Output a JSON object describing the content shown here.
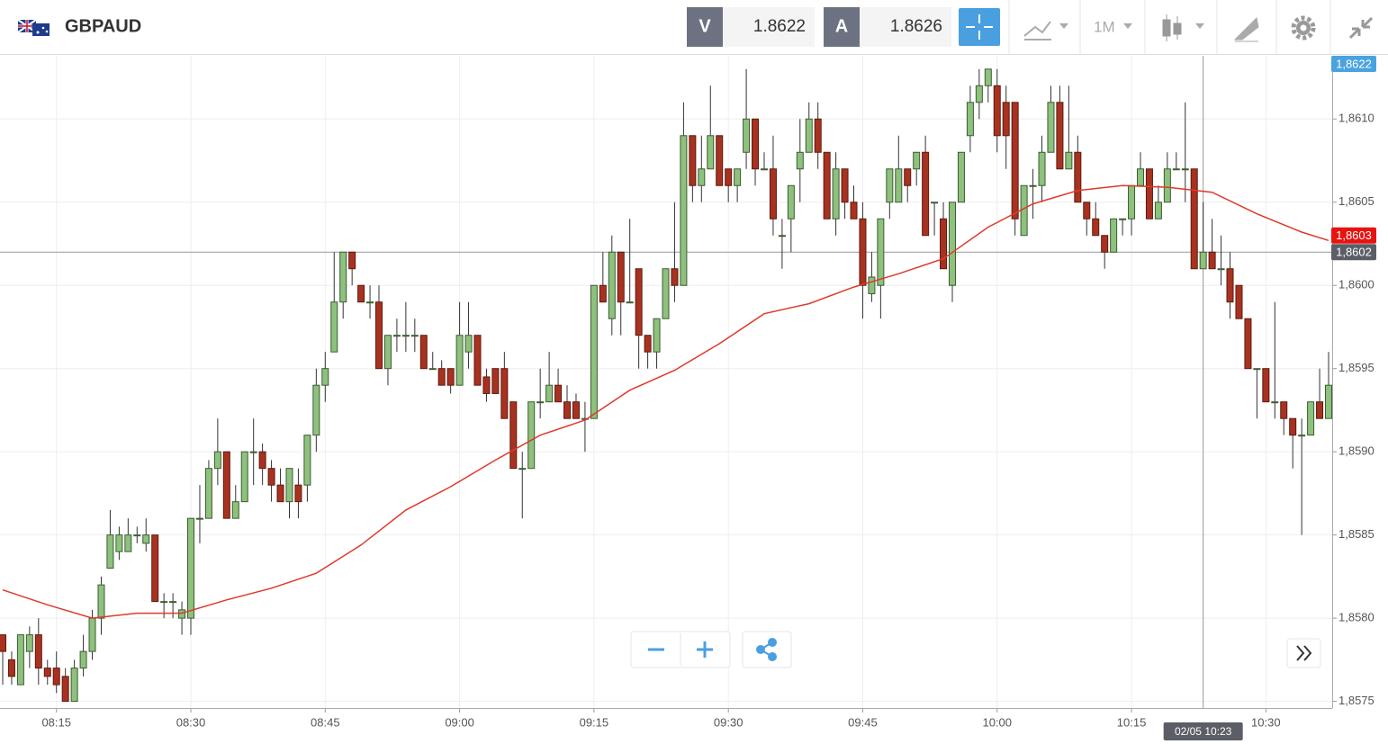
{
  "header": {
    "symbol": "GBPAUD",
    "bid_label": "V",
    "bid": "1.8622",
    "ask_label": "A",
    "ask": "1.8626",
    "timeframe": "1M"
  },
  "chart_data": {
    "type": "candlestick",
    "up_color": "#8dc17d",
    "down_color": "#a83220",
    "x": [
      "08:09",
      "08:10",
      "08:11",
      "08:12",
      "08:13",
      "08:14",
      "08:15",
      "08:16",
      "08:17",
      "08:18",
      "08:19",
      "08:20",
      "08:21",
      "08:22",
      "08:23",
      "08:24",
      "08:25",
      "08:26",
      "08:27",
      "08:28",
      "08:29",
      "08:30",
      "08:31",
      "08:32",
      "08:33",
      "08:34",
      "08:35",
      "08:36",
      "08:37",
      "08:38",
      "08:39",
      "08:40",
      "08:41",
      "08:42",
      "08:43",
      "08:44",
      "08:45",
      "08:46",
      "08:47",
      "08:48",
      "08:49",
      "08:50",
      "08:51",
      "08:52",
      "08:53",
      "08:54",
      "08:55",
      "08:56",
      "08:57",
      "08:58",
      "08:59",
      "09:00",
      "09:01",
      "09:02",
      "09:03",
      "09:04",
      "09:05",
      "09:06",
      "09:07",
      "09:08",
      "09:09",
      "09:10",
      "09:11",
      "09:12",
      "09:13",
      "09:14",
      "09:15",
      "09:16",
      "09:17",
      "09:18",
      "09:19",
      "09:20",
      "09:21",
      "09:22",
      "09:23",
      "09:24",
      "09:25",
      "09:26",
      "09:27",
      "09:28",
      "09:29",
      "09:30",
      "09:31",
      "09:32",
      "09:33",
      "09:34",
      "09:35",
      "09:36",
      "09:37",
      "09:38",
      "09:39",
      "09:40",
      "09:41",
      "09:42",
      "09:43",
      "09:44",
      "09:45",
      "09:46",
      "09:47",
      "09:48",
      "09:49",
      "09:50",
      "09:51",
      "09:52",
      "09:53",
      "09:54",
      "09:55",
      "09:56",
      "09:57",
      "09:58",
      "09:59",
      "10:00",
      "10:01",
      "10:02",
      "10:03",
      "10:04",
      "10:05",
      "10:06",
      "10:07",
      "10:08",
      "10:09",
      "10:10",
      "10:11",
      "10:12",
      "10:13",
      "10:14",
      "10:15",
      "10:16",
      "10:17",
      "10:18",
      "10:19",
      "10:20",
      "10:21",
      "10:22",
      "10:23",
      "10:24",
      "10:25",
      "10:26",
      "10:27",
      "10:28",
      "10:29",
      "10:30",
      "10:31",
      "10:32",
      "10:33",
      "10:34",
      "10:35",
      "10:36",
      "10:37"
    ],
    "ohlc": [
      [
        1.8579,
        1.8579,
        1.8576,
        1.8578
      ],
      [
        1.85775,
        1.8578,
        1.8576,
        1.85765
      ],
      [
        1.8576,
        1.8579,
        1.8576,
        1.8579
      ],
      [
        1.8578,
        1.85795,
        1.8577,
        1.8579
      ],
      [
        1.8579,
        1.858,
        1.8576,
        1.8577
      ],
      [
        1.8577,
        1.85775,
        1.8576,
        1.85765
      ],
      [
        1.8577,
        1.8578,
        1.85755,
        1.8576
      ],
      [
        1.85765,
        1.8577,
        1.8575,
        1.8575
      ],
      [
        1.8575,
        1.85775,
        1.8575,
        1.8577
      ],
      [
        1.8577,
        1.8579,
        1.85765,
        1.8578
      ],
      [
        1.8578,
        1.85805,
        1.85775,
        1.858
      ],
      [
        1.858,
        1.85825,
        1.8579,
        1.8582
      ],
      [
        1.8583,
        1.85865,
        1.8583,
        1.8585
      ],
      [
        1.8584,
        1.85855,
        1.85835,
        1.8585
      ],
      [
        1.8584,
        1.8586,
        1.8584,
        1.8585
      ],
      [
        1.8585,
        1.85855,
        1.85845,
        1.8585
      ],
      [
        1.85845,
        1.8586,
        1.8584,
        1.8585
      ],
      [
        1.8585,
        1.8585,
        1.8581,
        1.8581
      ],
      [
        1.8581,
        1.85815,
        1.858,
        1.8581
      ],
      [
        1.8581,
        1.85815,
        1.858,
        1.8581
      ],
      [
        1.858,
        1.8581,
        1.8579,
        1.85805
      ],
      [
        1.858,
        1.8586,
        1.8579,
        1.8586
      ],
      [
        1.8586,
        1.8588,
        1.85845,
        1.8586
      ],
      [
        1.8586,
        1.85895,
        1.8586,
        1.8589
      ],
      [
        1.8589,
        1.8592,
        1.8588,
        1.859
      ],
      [
        1.859,
        1.859,
        1.8586,
        1.8586
      ],
      [
        1.8586,
        1.8588,
        1.8586,
        1.8587
      ],
      [
        1.8587,
        1.859,
        1.8587,
        1.859
      ],
      [
        1.859,
        1.8592,
        1.8588,
        1.859
      ],
      [
        1.859,
        1.85905,
        1.8588,
        1.8589
      ],
      [
        1.8589,
        1.85895,
        1.8587,
        1.8588
      ],
      [
        1.8588,
        1.8589,
        1.8587,
        1.8587
      ],
      [
        1.8587,
        1.8589,
        1.8586,
        1.8589
      ],
      [
        1.8588,
        1.8589,
        1.8586,
        1.8587
      ],
      [
        1.8588,
        1.8591,
        1.8587,
        1.8591
      ],
      [
        1.8591,
        1.8595,
        1.859,
        1.8594
      ],
      [
        1.8594,
        1.8596,
        1.8593,
        1.8595
      ],
      [
        1.8596,
        1.8602,
        1.8596,
        1.8599
      ],
      [
        1.8599,
        1.8602,
        1.8598,
        1.8602
      ],
      [
        1.8602,
        1.8602,
        1.86,
        1.8601
      ],
      [
        1.86,
        1.86,
        1.8599,
        1.8599
      ],
      [
        1.8599,
        1.86,
        1.8598,
        1.8599
      ],
      [
        1.8599,
        1.86,
        1.8595,
        1.8595
      ],
      [
        1.8595,
        1.8597,
        1.8594,
        1.8597
      ],
      [
        1.8597,
        1.8598,
        1.8596,
        1.8597
      ],
      [
        1.8597,
        1.8599,
        1.8596,
        1.8597
      ],
      [
        1.8597,
        1.8598,
        1.8596,
        1.8597
      ],
      [
        1.8597,
        1.8597,
        1.8595,
        1.8595
      ],
      [
        1.8595,
        1.8596,
        1.8595,
        1.8595
      ],
      [
        1.8595,
        1.85955,
        1.8594,
        1.8594
      ],
      [
        1.8595,
        1.8595,
        1.85935,
        1.8594
      ],
      [
        1.8594,
        1.8599,
        1.8594,
        1.8597
      ],
      [
        1.8596,
        1.8599,
        1.8595,
        1.8597
      ],
      [
        1.8597,
        1.8597,
        1.8594,
        1.8594
      ],
      [
        1.85945,
        1.8595,
        1.8593,
        1.85935
      ],
      [
        1.8595,
        1.8595,
        1.85935,
        1.85935
      ],
      [
        1.8595,
        1.8596,
        1.8592,
        1.8592
      ],
      [
        1.8593,
        1.8593,
        1.8589,
        1.8589
      ],
      [
        1.8589,
        1.859,
        1.8586,
        1.8589
      ],
      [
        1.8589,
        1.8593,
        1.8589,
        1.8593
      ],
      [
        1.8593,
        1.8595,
        1.8592,
        1.8593
      ],
      [
        1.8593,
        1.8596,
        1.8593,
        1.8594
      ],
      [
        1.8594,
        1.8595,
        1.8593,
        1.8593
      ],
      [
        1.8593,
        1.8594,
        1.8592,
        1.8592
      ],
      [
        1.8593,
        1.85935,
        1.8592,
        1.8592
      ],
      [
        1.8592,
        1.8593,
        1.859,
        1.8592
      ],
      [
        1.8592,
        1.86,
        1.8592,
        1.86
      ],
      [
        1.86,
        1.8602,
        1.8599,
        1.8599
      ],
      [
        1.8598,
        1.8603,
        1.8597,
        1.8602
      ],
      [
        1.8602,
        1.8602,
        1.8597,
        1.8599
      ],
      [
        1.8599,
        1.8604,
        1.8599,
        1.8599
      ],
      [
        1.8601,
        1.8601,
        1.8595,
        1.8597
      ],
      [
        1.8597,
        1.8597,
        1.8595,
        1.8596
      ],
      [
        1.8596,
        1.8598,
        1.8595,
        1.8598
      ],
      [
        1.8598,
        1.8601,
        1.8598,
        1.8601
      ],
      [
        1.8601,
        1.8605,
        1.8599,
        1.86
      ],
      [
        1.86,
        1.8611,
        1.86,
        1.8609
      ],
      [
        1.8609,
        1.8609,
        1.8605,
        1.8606
      ],
      [
        1.8606,
        1.8609,
        1.8605,
        1.8607
      ],
      [
        1.8607,
        1.8612,
        1.8607,
        1.8609
      ],
      [
        1.8609,
        1.8609,
        1.8606,
        1.8606
      ],
      [
        1.8607,
        1.8607,
        1.8605,
        1.8606
      ],
      [
        1.8606,
        1.8607,
        1.8605,
        1.8607
      ],
      [
        1.8608,
        1.8613,
        1.8607,
        1.861
      ],
      [
        1.861,
        1.861,
        1.8606,
        1.8607
      ],
      [
        1.8607,
        1.8608,
        1.8607,
        1.8607
      ],
      [
        1.8607,
        1.8609,
        1.8603,
        1.8604
      ],
      [
        1.8603,
        1.8604,
        1.8601,
        1.8603
      ],
      [
        1.8604,
        1.8606,
        1.8602,
        1.8606
      ],
      [
        1.8607,
        1.861,
        1.8605,
        1.8608
      ],
      [
        1.8608,
        1.8611,
        1.8608,
        1.861
      ],
      [
        1.861,
        1.8611,
        1.8607,
        1.8608
      ],
      [
        1.8608,
        1.8608,
        1.8604,
        1.8604
      ],
      [
        1.8604,
        1.8608,
        1.8603,
        1.8607
      ],
      [
        1.8607,
        1.8607,
        1.8604,
        1.8605
      ],
      [
        1.8605,
        1.8606,
        1.8604,
        1.8604
      ],
      [
        1.8604,
        1.8605,
        1.8598,
        1.86
      ],
      [
        1.85995,
        1.8602,
        1.8599,
        1.86005
      ],
      [
        1.86,
        1.8604,
        1.8598,
        1.8604
      ],
      [
        1.8605,
        1.8607,
        1.8604,
        1.8607
      ],
      [
        1.8605,
        1.8609,
        1.8605,
        1.8607
      ],
      [
        1.8607,
        1.8607,
        1.8605,
        1.8606
      ],
      [
        1.8607,
        1.8608,
        1.8606,
        1.8608
      ],
      [
        1.8608,
        1.8609,
        1.8603,
        1.8603
      ],
      [
        1.8605,
        1.8605,
        1.8603,
        1.8605
      ],
      [
        1.8604,
        1.8605,
        1.8601,
        1.8601
      ],
      [
        1.86,
        1.8605,
        1.8599,
        1.8605
      ],
      [
        1.8605,
        1.8608,
        1.8605,
        1.8608
      ],
      [
        1.8609,
        1.8612,
        1.8608,
        1.8611
      ],
      [
        1.8611,
        1.8613,
        1.861,
        1.8612
      ],
      [
        1.8612,
        1.8613,
        1.8611,
        1.8613
      ],
      [
        1.8612,
        1.8613,
        1.8608,
        1.8609
      ],
      [
        1.8611,
        1.8612,
        1.8607,
        1.8609
      ],
      [
        1.8611,
        1.8611,
        1.8603,
        1.8604
      ],
      [
        1.8603,
        1.8606,
        1.8603,
        1.8606
      ],
      [
        1.8606,
        1.8607,
        1.8604,
        1.8606
      ],
      [
        1.8606,
        1.8609,
        1.8605,
        1.8608
      ],
      [
        1.8608,
        1.8612,
        1.8608,
        1.8611
      ],
      [
        1.8611,
        1.8612,
        1.8607,
        1.8607
      ],
      [
        1.8607,
        1.8612,
        1.8607,
        1.8608
      ],
      [
        1.8608,
        1.8609,
        1.8605,
        1.8605
      ],
      [
        1.8605,
        1.8605,
        1.8603,
        1.8604
      ],
      [
        1.8604,
        1.8605,
        1.8603,
        1.8603
      ],
      [
        1.8603,
        1.8603,
        1.8601,
        1.8602
      ],
      [
        1.8602,
        1.8604,
        1.8602,
        1.8604
      ],
      [
        1.8604,
        1.8604,
        1.8603,
        1.8604
      ],
      [
        1.8604,
        1.8606,
        1.8603,
        1.8606
      ],
      [
        1.8606,
        1.8608,
        1.8606,
        1.8607
      ],
      [
        1.8607,
        1.8607,
        1.8604,
        1.8604
      ],
      [
        1.8604,
        1.8606,
        1.8604,
        1.8605
      ],
      [
        1.8605,
        1.8608,
        1.8605,
        1.8607
      ],
      [
        1.8607,
        1.8608,
        1.8607,
        1.8607
      ],
      [
        1.8607,
        1.8611,
        1.8605,
        1.8607
      ],
      [
        1.8607,
        1.8607,
        1.8601,
        1.8601
      ],
      [
        1.8601,
        1.8605,
        1.8601,
        1.8602
      ],
      [
        1.8602,
        1.8604,
        1.8601,
        1.8601
      ],
      [
        1.8601,
        1.8603,
        1.86,
        1.8601
      ],
      [
        1.8601,
        1.8602,
        1.8598,
        1.8599
      ],
      [
        1.86,
        1.86,
        1.8598,
        1.8598
      ],
      [
        1.8598,
        1.8598,
        1.8595,
        1.8595
      ],
      [
        1.8595,
        1.8595,
        1.8592,
        1.8595
      ],
      [
        1.8595,
        1.8595,
        1.8593,
        1.8593
      ],
      [
        1.8593,
        1.8599,
        1.8592,
        1.8593
      ],
      [
        1.8593,
        1.8593,
        1.8591,
        1.8592
      ],
      [
        1.8592,
        1.8592,
        1.8589,
        1.8591
      ],
      [
        1.8591,
        1.8592,
        1.8585,
        1.8591
      ],
      [
        1.8591,
        1.8593,
        1.8591,
        1.8593
      ],
      [
        1.8593,
        1.8595,
        1.8592,
        1.8592
      ],
      [
        1.8592,
        1.8596,
        1.8592,
        1.8594
      ]
    ],
    "moving_average": {
      "color": "#e0392b",
      "x": [
        "08:09",
        "08:14",
        "08:19",
        "08:24",
        "08:29",
        "08:34",
        "08:39",
        "08:44",
        "08:49",
        "08:54",
        "08:59",
        "09:04",
        "09:09",
        "09:14",
        "09:19",
        "09:24",
        "09:29",
        "09:34",
        "09:39",
        "09:44",
        "09:49",
        "09:54",
        "09:59",
        "10:04",
        "10:09",
        "10:14",
        "10:19",
        "10:24",
        "10:29",
        "10:34",
        "10:37"
      ],
      "values": [
        1.85817,
        1.85808,
        1.858,
        1.85803,
        1.85803,
        1.85811,
        1.85818,
        1.85827,
        1.85844,
        1.85865,
        1.85879,
        1.85895,
        1.8591,
        1.85919,
        1.85937,
        1.85949,
        1.85965,
        1.85983,
        1.85989,
        1.85999,
        1.86007,
        1.86016,
        1.86035,
        1.86049,
        1.86057,
        1.8606,
        1.86059,
        1.86056,
        1.86043,
        1.86032,
        1.86027
      ]
    },
    "xlim": [
      "08:09",
      "10:37"
    ],
    "xticks": [
      "08:15",
      "08:30",
      "08:45",
      "09:00",
      "09:15",
      "09:30",
      "09:45",
      "10:00",
      "10:15",
      "10:30"
    ],
    "ylim": [
      1.85746,
      1.86138
    ],
    "yticks": [
      {
        "value": 1.8575,
        "label": "1,8575"
      },
      {
        "value": 1.858,
        "label": "1,8580"
      },
      {
        "value": 1.8585,
        "label": "1,8585"
      },
      {
        "value": 1.859,
        "label": "1,8590"
      },
      {
        "value": 1.8595,
        "label": "1,8595"
      },
      {
        "value": 1.86,
        "label": "1,8600"
      },
      {
        "value": 1.8605,
        "label": "1,8605"
      },
      {
        "value": 1.861,
        "label": "1,8610"
      }
    ],
    "grid": true,
    "price_tags": [
      {
        "value": 1.8622,
        "label": "1,8622",
        "color": "#4aa3df"
      },
      {
        "value": 1.8603,
        "label": "1,8603",
        "color": "#e8130f"
      }
    ],
    "crosshair": {
      "x": "10:23",
      "x_label": "02/05 10:23",
      "y": 1.8602,
      "y_label": "1,8602"
    }
  }
}
